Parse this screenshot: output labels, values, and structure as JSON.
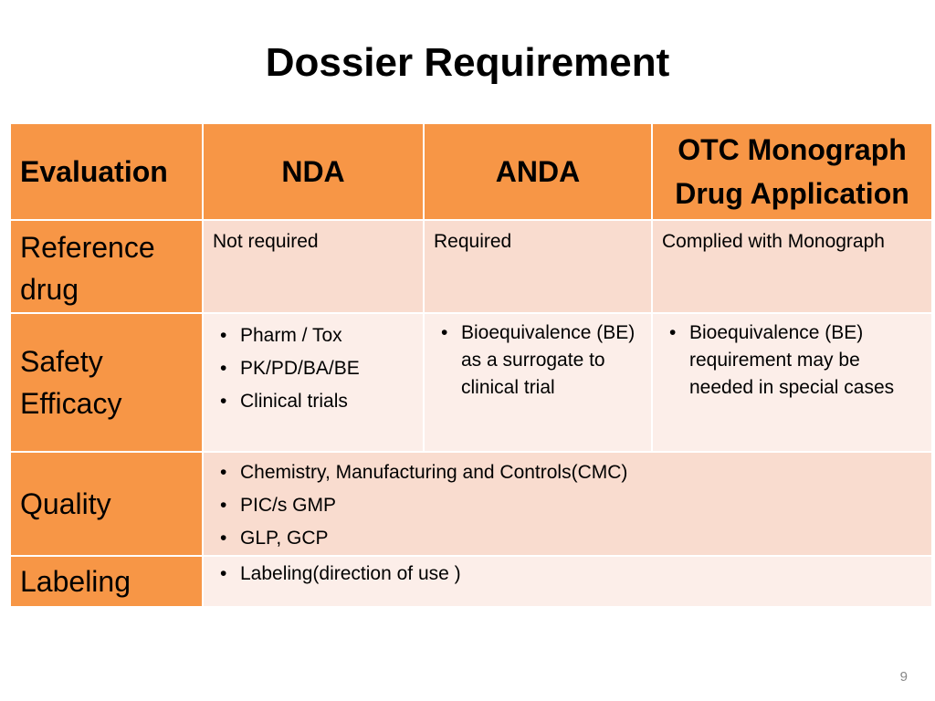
{
  "title": "Dossier Requirement",
  "headers": [
    "Evaluation",
    "NDA",
    "ANDA",
    "OTC Monograph Drug Application"
  ],
  "rows": {
    "reference": {
      "label": "Reference drug",
      "nda": "Not required",
      "anda": "Required",
      "otc": "Complied with Monograph"
    },
    "safety": {
      "label": "Safety Efficacy",
      "nda": [
        "Pharm / Tox",
        "PK/PD/BA/BE",
        "Clinical trials"
      ],
      "anda": [
        "Bioequivalence (BE) as a surrogate to clinical trial"
      ],
      "otc": [
        "Bioequivalence (BE) requirement may be needed in special cases"
      ]
    },
    "quality": {
      "label": "Quality",
      "items": [
        "Chemistry, Manufacturing and Controls(CMC)",
        "PIC/s GMP",
        "GLP, GCP"
      ]
    },
    "labeling": {
      "label": "Labeling",
      "items": [
        "Labeling(direction of use )"
      ]
    }
  },
  "page_number": "9",
  "colors": {
    "header": "#F79646",
    "cell_dark": "#F9DCCF",
    "cell_light": "#FCEEE9"
  }
}
